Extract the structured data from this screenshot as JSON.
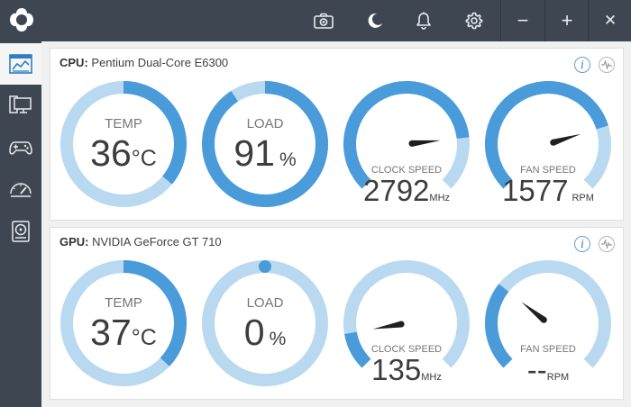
{
  "colors": {
    "arc_bg": "#b9d9f1",
    "arc_fg": "#4a9bd9",
    "titlebar": "#3e4651",
    "needle": "#1f1f1f"
  },
  "toolbar_icons": [
    "camera-icon",
    "moon-icon",
    "bell-icon",
    "gear-icon"
  ],
  "window_controls": {
    "minimize": "−",
    "maximize": "+",
    "close": "✕"
  },
  "sidebar_icons": [
    "dashboard-icon",
    "monitor-icon",
    "gamepad-icon",
    "speedometer-icon",
    "disk-icon"
  ],
  "cpu": {
    "label": "CPU:",
    "name": "Pentium Dual-Core E6300",
    "temp": {
      "label": "TEMP",
      "value": "36",
      "unit": "°C",
      "fraction": 0.36
    },
    "load": {
      "label": "LOAD",
      "value": "91",
      "unit": "%",
      "fraction": 0.91
    },
    "clock": {
      "label": "CLOCK SPEED",
      "value": "2792",
      "unit": "MHz",
      "needle_fraction": 0.81
    },
    "fan": {
      "label": "FAN SPEED",
      "value": "1577",
      "unit": "RPM",
      "needle_fraction": 0.77
    }
  },
  "gpu": {
    "label": "GPU:",
    "name": "NVIDIA GeForce GT 710",
    "temp": {
      "label": "TEMP",
      "value": "37",
      "unit": "°C",
      "fraction": 0.37
    },
    "load": {
      "label": "LOAD",
      "value": "0",
      "unit": "%",
      "fraction": 0.0
    },
    "clock": {
      "label": "CLOCK SPEED",
      "value": "135",
      "unit": "MHz",
      "needle_fraction": 0.13
    },
    "fan": {
      "label": "FAN SPEED",
      "value": "--",
      "unit": "RPM",
      "needle_fraction": 0.31
    }
  }
}
